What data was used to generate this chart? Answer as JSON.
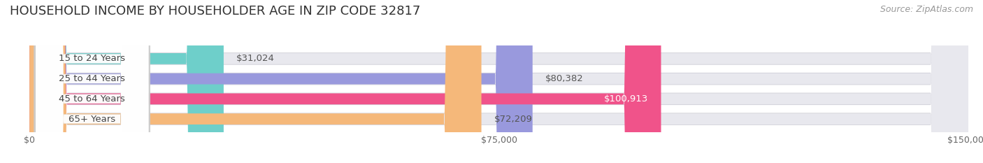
{
  "title": "HOUSEHOLD INCOME BY HOUSEHOLDER AGE IN ZIP CODE 32817",
  "source": "Source: ZipAtlas.com",
  "categories": [
    "15 to 24 Years",
    "25 to 44 Years",
    "45 to 64 Years",
    "65+ Years"
  ],
  "values": [
    31024,
    80382,
    100913,
    72209
  ],
  "labels": [
    "$31,024",
    "$80,382",
    "$100,913",
    "$72,209"
  ],
  "label_inside": [
    false,
    false,
    true,
    false
  ],
  "bar_colors": [
    "#6ecfca",
    "#9999dd",
    "#f0538a",
    "#f5b87a"
  ],
  "bar_bg_color": "#e8e8ee",
  "xlim": [
    0,
    150000
  ],
  "xticks": [
    0,
    75000,
    150000
  ],
  "xtick_labels": [
    "$0",
    "$75,000",
    "$150,000"
  ],
  "title_fontsize": 13,
  "source_fontsize": 9,
  "label_fontsize": 9.5,
  "category_fontsize": 9.5,
  "background_color": "#ffffff",
  "ax_bg_color": "#ffffff"
}
